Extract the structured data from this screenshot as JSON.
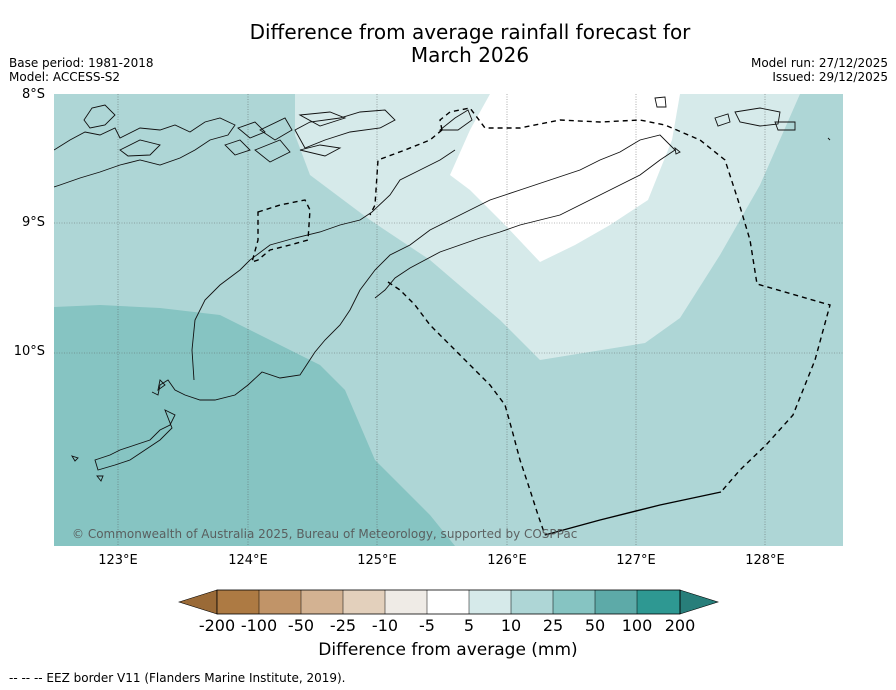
{
  "header": {
    "title_line1": "Difference from average rainfall forecast for",
    "title_line2": "March 2026",
    "base_period": "Base period: 1981-2018",
    "model": "Model: ACCESS-S2",
    "model_run": "Model run: 27/12/2025",
    "issued": "Issued: 29/12/2025"
  },
  "map": {
    "lat_labels": [
      "8°S",
      "9°S",
      "10°S"
    ],
    "lon_labels": [
      "123°E",
      "124°E",
      "125°E",
      "126°E",
      "127°E",
      "128°E"
    ],
    "copyright": "© Commonwealth of Australia 2025, Bureau of Meteorology, supported by COSPPac"
  },
  "colorbar": {
    "tick_labels": [
      "-200",
      "-100",
      "-50",
      "-25",
      "-10",
      "-5",
      "5",
      "10",
      "25",
      "50",
      "100",
      "200"
    ],
    "colors": [
      "#ad7a43",
      "#c19468",
      "#d3b292",
      "#e3d0bc",
      "#efebe6",
      "#ffffff",
      "#d6eaea",
      "#aed6d6",
      "#86c4c2",
      "#5daaa8",
      "#2e9892"
    ],
    "under_color": "#9a6a37",
    "over_color": "#287e7a",
    "label": "Difference from average (mm)"
  },
  "legend": {
    "footnote": "--  --  -- EEZ border V11 (Flanders Marine Institute, 2019)."
  }
}
